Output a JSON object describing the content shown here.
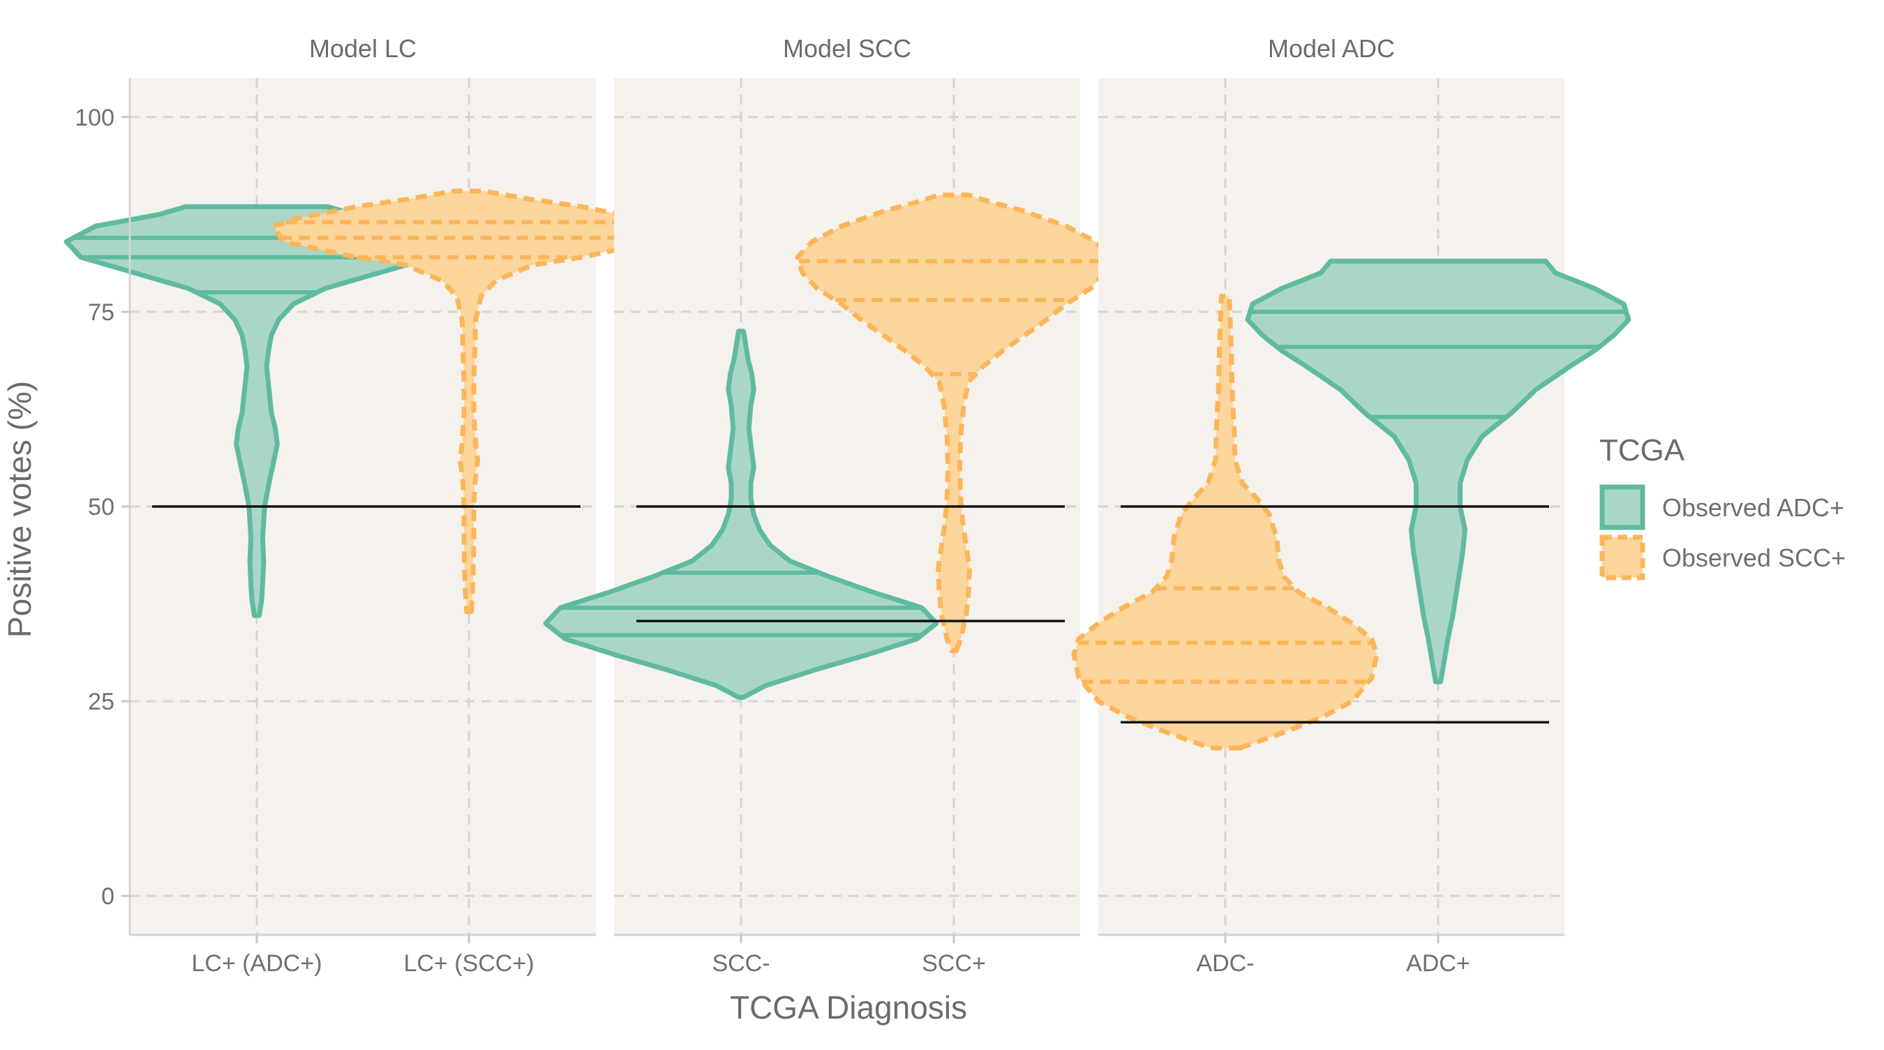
{
  "chart_data": {
    "type": "violin",
    "ylabel": "Positive votes (%)",
    "xlabel": "TCGA Diagnosis",
    "ylim": [
      -5,
      105
    ],
    "yticks": [
      0,
      25,
      50,
      75,
      100
    ],
    "grid": true,
    "legend": {
      "title": "TCGA",
      "placement": "right",
      "entries": [
        {
          "name": "Observed ADC+",
          "fill": "#aad6c8",
          "stroke": "#5fba9f",
          "dash": false
        },
        {
          "name": "Observed SCC+",
          "fill": "#fcd59c",
          "stroke": "#fbb65a",
          "dash": true
        }
      ]
    },
    "panels": [
      {
        "title": "Model LC",
        "categories": [
          "LC+ (ADC+)",
          "LC+ (SCC+)"
        ],
        "hlines": [
          50
        ],
        "violins": [
          {
            "category": "LC+ (ADC+)",
            "group": "Observed ADC+",
            "min": 36,
            "max": 88.5,
            "quantiles": [
              77.5,
              82,
              84.5
            ],
            "profile": [
              [
                36,
                0.05
              ],
              [
                38,
                0.1
              ],
              [
                40,
                0.12
              ],
              [
                43,
                0.14
              ],
              [
                46,
                0.12
              ],
              [
                50,
                0.16
              ],
              [
                53,
                0.25
              ],
              [
                55,
                0.32
              ],
              [
                58,
                0.42
              ],
              [
                60,
                0.38
              ],
              [
                62,
                0.3
              ],
              [
                65,
                0.25
              ],
              [
                68,
                0.2
              ],
              [
                70,
                0.24
              ],
              [
                72,
                0.3
              ],
              [
                74,
                0.45
              ],
              [
                76,
                0.75
              ],
              [
                78,
                1.4
              ],
              [
                80,
                2.5
              ],
              [
                82,
                3.6
              ],
              [
                84,
                3.9
              ],
              [
                86,
                3.3
              ],
              [
                87.5,
                2.0
              ],
              [
                88.5,
                1.45
              ]
            ]
          },
          {
            "category": "LC+ (SCC+)",
            "group": "Observed SCC+",
            "min": 36.5,
            "max": 90.5,
            "quantiles": [
              82,
              84.5,
              86.5
            ],
            "profile": [
              [
                36.5,
                0.05
              ],
              [
                40,
                0.08
              ],
              [
                45,
                0.1
              ],
              [
                50,
                0.1
              ],
              [
                53,
                0.12
              ],
              [
                56,
                0.18
              ],
              [
                58,
                0.14
              ],
              [
                62,
                0.1
              ],
              [
                66,
                0.1
              ],
              [
                70,
                0.12
              ],
              [
                74,
                0.14
              ],
              [
                77,
                0.25
              ],
              [
                79,
                0.55
              ],
              [
                81,
                1.3
              ],
              [
                82,
                2.3
              ],
              [
                84,
                3.8
              ],
              [
                86,
                4.0
              ],
              [
                87,
                3.5
              ],
              [
                88.5,
                2.3
              ],
              [
                89.5,
                1.2
              ],
              [
                90.5,
                0.3
              ]
            ]
          }
        ]
      },
      {
        "title": "Model SCC",
        "categories": [
          "SCC-",
          "SCC+"
        ],
        "hlines": [
          50,
          35.3
        ],
        "violins": [
          {
            "category": "SCC-",
            "group": "Observed ADC+",
            "min": 25.5,
            "max": 72.5,
            "quantiles": [
              33.5,
              37,
              41.5
            ],
            "profile": [
              [
                25.5,
                0.05
              ],
              [
                27,
                0.5
              ],
              [
                29,
                1.5
              ],
              [
                31,
                2.6
              ],
              [
                33,
                3.6
              ],
              [
                35,
                4.0
              ],
              [
                37,
                3.7
              ],
              [
                39,
                2.7
              ],
              [
                41,
                1.8
              ],
              [
                43,
                1.0
              ],
              [
                45,
                0.6
              ],
              [
                47,
                0.38
              ],
              [
                49,
                0.26
              ],
              [
                51,
                0.2
              ],
              [
                53,
                0.2
              ],
              [
                55,
                0.26
              ],
              [
                57,
                0.22
              ],
              [
                60,
                0.16
              ],
              [
                63,
                0.2
              ],
              [
                65,
                0.26
              ],
              [
                67,
                0.22
              ],
              [
                69,
                0.14
              ],
              [
                71,
                0.09
              ],
              [
                72.5,
                0.05
              ]
            ]
          },
          {
            "category": "SCC+",
            "group": "Observed SCC+",
            "min": 31.5,
            "max": 90,
            "quantiles": [
              67,
              76.5,
              81.5
            ],
            "profile": [
              [
                31.5,
                0.05
              ],
              [
                33,
                0.14
              ],
              [
                36,
                0.25
              ],
              [
                39,
                0.3
              ],
              [
                42,
                0.32
              ],
              [
                45,
                0.25
              ],
              [
                48,
                0.18
              ],
              [
                51,
                0.14
              ],
              [
                55,
                0.12
              ],
              [
                59,
                0.14
              ],
              [
                63,
                0.2
              ],
              [
                66,
                0.3
              ],
              [
                68,
                0.6
              ],
              [
                70,
                1.0
              ],
              [
                72,
                1.45
              ],
              [
                74,
                1.9
              ],
              [
                76,
                2.3
              ],
              [
                78,
                2.8
              ],
              [
                80,
                3.1
              ],
              [
                82,
                3.2
              ],
              [
                84,
                2.9
              ],
              [
                86,
                2.3
              ],
              [
                88,
                1.4
              ],
              [
                89,
                0.8
              ],
              [
                90,
                0.3
              ]
            ]
          }
        ]
      },
      {
        "title": "Model ADC",
        "categories": [
          "ADC-",
          "ADC+"
        ],
        "hlines": [
          50,
          22.3
        ],
        "violins": [
          {
            "category": "ADC-",
            "group": "Observed SCC+",
            "min": 19,
            "max": 77,
            "quantiles": [
              27.5,
              32.5,
              39.5
            ],
            "profile": [
              [
                19,
                0.3
              ],
              [
                21,
                1.2
              ],
              [
                23,
                2.0
              ],
              [
                25,
                2.6
              ],
              [
                28,
                3.0
              ],
              [
                31,
                3.1
              ],
              [
                33,
                3.0
              ],
              [
                35,
                2.6
              ],
              [
                37,
                2.1
              ],
              [
                39,
                1.5
              ],
              [
                41,
                1.2
              ],
              [
                43,
                1.1
              ],
              [
                46,
                1.05
              ],
              [
                49,
                0.9
              ],
              [
                51,
                0.65
              ],
              [
                53,
                0.35
              ],
              [
                56,
                0.2
              ],
              [
                60,
                0.18
              ],
              [
                65,
                0.14
              ],
              [
                70,
                0.12
              ],
              [
                74,
                0.1
              ],
              [
                77,
                0.08
              ]
            ]
          },
          {
            "category": "ADC+",
            "group": "Observed ADC+",
            "min": 27.5,
            "max": 81.5,
            "quantiles": [
              61.5,
              70.5,
              75
            ],
            "profile": [
              [
                27.5,
                0.05
              ],
              [
                30,
                0.12
              ],
              [
                33,
                0.2
              ],
              [
                36,
                0.3
              ],
              [
                40,
                0.4
              ],
              [
                44,
                0.5
              ],
              [
                47,
                0.55
              ],
              [
                50,
                0.45
              ],
              [
                53,
                0.45
              ],
              [
                56,
                0.6
              ],
              [
                59,
                0.9
              ],
              [
                62,
                1.5
              ],
              [
                65,
                2.0
              ],
              [
                68,
                2.7
              ],
              [
                70,
                3.2
              ],
              [
                72,
                3.6
              ],
              [
                74,
                3.9
              ],
              [
                76,
                3.8
              ],
              [
                78,
                3.2
              ],
              [
                80,
                2.4
              ],
              [
                81.5,
                2.2
              ]
            ]
          }
        ]
      }
    ]
  }
}
